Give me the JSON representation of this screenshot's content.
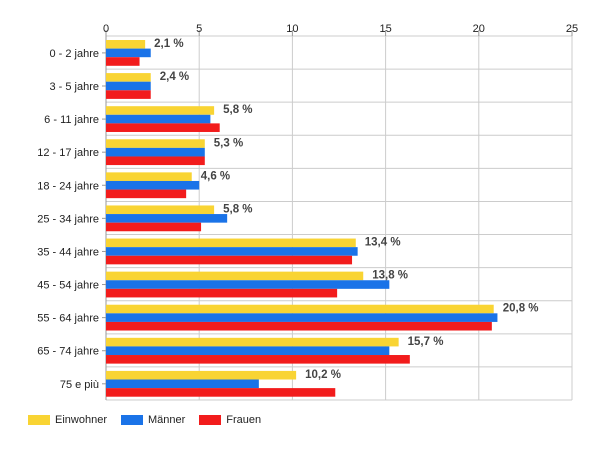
{
  "chart_data": {
    "type": "bar",
    "orientation": "horizontal",
    "categories": [
      "0 - 2 jahre",
      "3 - 5 jahre",
      "6 - 11 jahre",
      "12 - 17 jahre",
      "18 - 24 jahre",
      "25 - 34 jahre",
      "35 - 44 jahre",
      "45 - 54 jahre",
      "55 - 64 jahre",
      "65 - 74 jahre",
      "75 e più"
    ],
    "series": [
      {
        "name": "Einwohner",
        "color": "#f9d433",
        "values": [
          2.1,
          2.4,
          5.8,
          5.3,
          4.6,
          5.8,
          13.4,
          13.8,
          20.8,
          15.7,
          10.2
        ]
      },
      {
        "name": "Männer",
        "color": "#1a73e8",
        "values": [
          2.4,
          2.4,
          5.6,
          5.3,
          5.0,
          6.5,
          13.5,
          15.2,
          21.0,
          15.2,
          8.2
        ]
      },
      {
        "name": "Frauen",
        "color": "#f21c1c",
        "values": [
          1.8,
          2.4,
          6.1,
          5.3,
          4.3,
          5.1,
          13.2,
          12.4,
          20.7,
          16.3,
          12.3
        ]
      }
    ],
    "data_labels": [
      "2,1 %",
      "2,4 %",
      "5,8 %",
      "5,3 %",
      "4,6 %",
      "5,8 %",
      "13,4 %",
      "13,8 %",
      "20,8 %",
      "15,7 %",
      "10,2 %"
    ],
    "x_ticks": [
      0,
      5,
      10,
      15,
      20,
      25
    ],
    "xlim": [
      0,
      25
    ],
    "grid": true,
    "legend_position": "bottom-left"
  }
}
